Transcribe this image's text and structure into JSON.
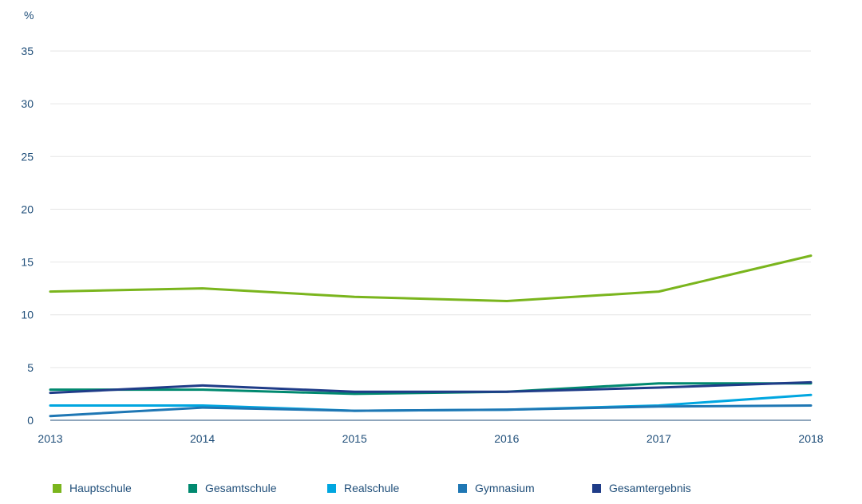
{
  "chart_data": {
    "type": "line",
    "unit_label": "%",
    "x": [
      "2013",
      "2014",
      "2015",
      "2016",
      "2017",
      "2018"
    ],
    "y_ticks": [
      "0",
      "5",
      "10",
      "15",
      "20",
      "25",
      "30",
      "35"
    ],
    "ylim": [
      0,
      35
    ],
    "grid": true,
    "legend_position": "bottom",
    "series": [
      {
        "name": "Hauptschule",
        "color": "#7ab51d",
        "values": [
          12.2,
          12.5,
          11.7,
          11.3,
          12.2,
          15.6
        ]
      },
      {
        "name": "Gesamtschule",
        "color": "#00896f",
        "values": [
          2.9,
          2.9,
          2.5,
          2.7,
          3.5,
          3.5
        ]
      },
      {
        "name": "Realschule",
        "color": "#00a6e0",
        "values": [
          1.4,
          1.4,
          0.9,
          1.0,
          1.4,
          2.4
        ]
      },
      {
        "name": "Gymnasium",
        "color": "#1f77b4",
        "values": [
          0.4,
          1.2,
          0.9,
          1.0,
          1.3,
          1.4
        ]
      },
      {
        "name": "Gesamtergebnis",
        "color": "#1f3c88",
        "values": [
          2.6,
          3.3,
          2.7,
          2.7,
          3.1,
          3.6
        ]
      }
    ]
  }
}
